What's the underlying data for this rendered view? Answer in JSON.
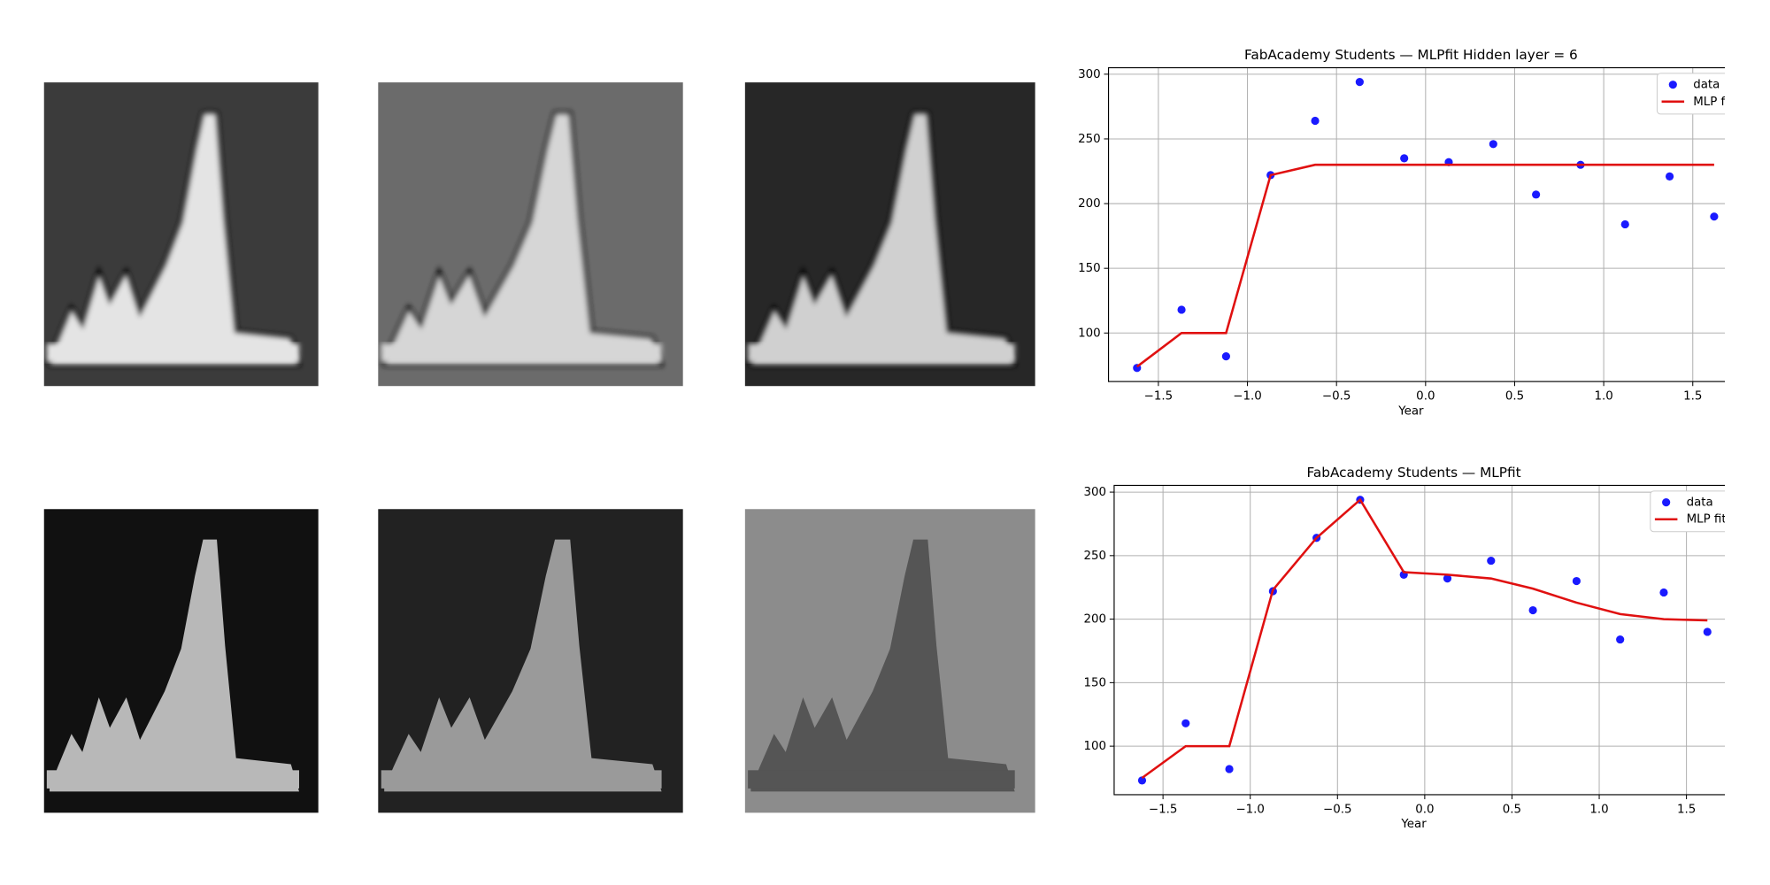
{
  "chart_data": [
    {
      "type": "line",
      "title": "FabAcademy Students — MLPfit Hidden layer = 6",
      "x_label": "Year",
      "x": [
        -1.62,
        -1.37,
        -1.12,
        -0.87,
        -0.62,
        -0.37,
        -0.12,
        0.13,
        0.38,
        0.62,
        0.87,
        1.12,
        1.37,
        1.62
      ],
      "series": [
        {
          "name": "data",
          "color": "#1a1aff",
          "mode": "markers",
          "values": [
            73,
            118,
            82,
            222,
            264,
            294,
            235,
            232,
            246,
            207,
            230,
            184,
            221,
            190
          ]
        },
        {
          "name": "MLP fit",
          "color": "#e01010",
          "mode": "line",
          "values": [
            74,
            100,
            100,
            222,
            230,
            230,
            230,
            230,
            230,
            230,
            230,
            230,
            230,
            230
          ]
        }
      ],
      "xlim": [
        -1.78,
        1.68
      ],
      "ylim": [
        62.5,
        305
      ],
      "xticks": [
        {
          "value": -1.5,
          "label": "−1.5"
        },
        {
          "value": -1.0,
          "label": "−1.0"
        },
        {
          "value": -0.5,
          "label": "−0.5"
        },
        {
          "value": 0.0,
          "label": "0.0"
        },
        {
          "value": 0.5,
          "label": "0.5"
        },
        {
          "value": 1.0,
          "label": "1.0"
        },
        {
          "value": 1.5,
          "label": "1.5"
        }
      ],
      "yticks": [
        100,
        150,
        200,
        250,
        300
      ],
      "grid": true,
      "legend": "upper-right"
    },
    {
      "type": "line",
      "title": "FabAcademy Students — MLPfit",
      "x_label": "Year",
      "x": [
        -1.62,
        -1.37,
        -1.12,
        -0.87,
        -0.62,
        -0.37,
        -0.12,
        0.13,
        0.38,
        0.62,
        0.87,
        1.12,
        1.37,
        1.62
      ],
      "series": [
        {
          "name": "data",
          "color": "#1a1aff",
          "mode": "markers",
          "values": [
            73,
            118,
            82,
            222,
            264,
            294,
            235,
            232,
            246,
            207,
            230,
            184,
            221,
            190
          ]
        },
        {
          "name": "MLP fit",
          "color": "#e01010",
          "mode": "line",
          "values": [
            75,
            100,
            100,
            223,
            264,
            294,
            237,
            235,
            232,
            224,
            213,
            204,
            200,
            199
          ]
        }
      ],
      "xlim": [
        -1.78,
        1.72
      ],
      "ylim": [
        61.8,
        305.3
      ],
      "xticks": [
        {
          "value": -1.5,
          "label": "−1.5"
        },
        {
          "value": -1.0,
          "label": "−1.0"
        },
        {
          "value": -0.5,
          "label": "−0.5"
        },
        {
          "value": 0.0,
          "label": "0.0"
        },
        {
          "value": 0.5,
          "label": "0.5"
        },
        {
          "value": 1.0,
          "label": "1.0"
        },
        {
          "value": 1.5,
          "label": "1.5"
        }
      ],
      "yticks": [
        100,
        150,
        200,
        250,
        300
      ],
      "grid": true,
      "legend": "upper-right"
    }
  ]
}
